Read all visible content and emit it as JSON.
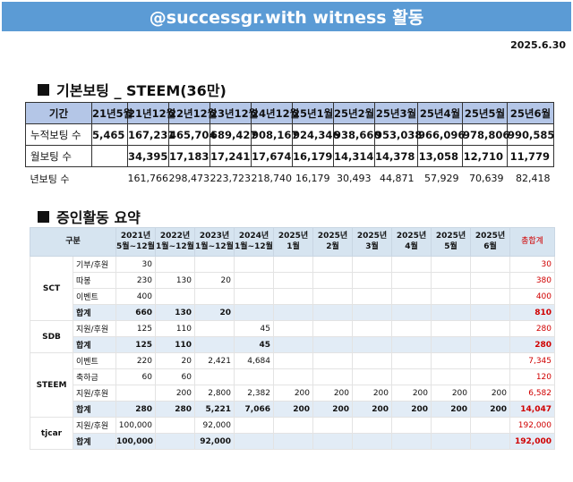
{
  "banner": "@successgr.with witness 활동",
  "date": "2025.6.30",
  "voting": {
    "title": "기본보팅 _ STEEM(36만)",
    "header": [
      "기간",
      "21년5월",
      "21년12월",
      "22년12월",
      "23년12월",
      "24년12월",
      "25년1월",
      "25년2월",
      "25년3월",
      "25년4월",
      "25년5월",
      "25년6월"
    ],
    "rows": [
      {
        "label": "누적보팅 수",
        "values": [
          "5,465",
          "167,231",
          "465,704",
          "689,427",
          "908,167",
          "924,346",
          "938,660",
          "953,038",
          "966,096",
          "978,806",
          "990,585"
        ]
      },
      {
        "label": "월보팅 수",
        "values": [
          "",
          "34,395",
          "17,183",
          "17,241",
          "17,674",
          "16,179",
          "14,314",
          "14,378",
          "13,058",
          "12,710",
          "11,779"
        ]
      },
      {
        "label": "년보팅 수",
        "values": [
          "",
          "161,766",
          "298,473",
          "223,723",
          "218,740",
          "16,179",
          "30,493",
          "44,871",
          "57,929",
          "70,639",
          "82,418"
        ]
      }
    ]
  },
  "donation": {
    "title": "증인활동 요약",
    "header": {
      "group": "구분",
      "cols": [
        [
          "2021년",
          "5월~12월"
        ],
        [
          "2022년",
          "1월~12월"
        ],
        [
          "2023년",
          "1월~12월"
        ],
        [
          "2024년",
          "1월~12월"
        ],
        [
          "2025년",
          "1월"
        ],
        [
          "2025년",
          "2월"
        ],
        [
          "2025년",
          "3월"
        ],
        [
          "2025년",
          "4월"
        ],
        [
          "2025년",
          "5월"
        ],
        [
          "2025년",
          "6월"
        ]
      ],
      "total": "총합계"
    },
    "groups": [
      {
        "name": "SCT",
        "rows": [
          {
            "label": "기부/후원",
            "values": [
              "30",
              "",
              "",
              "",
              "",
              "",
              "",
              "",
              "",
              ""
            ],
            "total": "30"
          },
          {
            "label": "따봉",
            "values": [
              "230",
              "130",
              "20",
              "",
              "",
              "",
              "",
              "",
              "",
              ""
            ],
            "total": "380"
          },
          {
            "label": "이벤트",
            "values": [
              "400",
              "",
              "",
              "",
              "",
              "",
              "",
              "",
              "",
              ""
            ],
            "total": "400"
          },
          {
            "label": "합계",
            "sum": true,
            "values": [
              "660",
              "130",
              "20",
              "",
              "",
              "",
              "",
              "",
              "",
              ""
            ],
            "total": "810"
          }
        ]
      },
      {
        "name": "SDB",
        "rows": [
          {
            "label": "지원/후원",
            "values": [
              "125",
              "110",
              "",
              "45",
              "",
              "",
              "",
              "",
              "",
              ""
            ],
            "total": "280"
          },
          {
            "label": "합계",
            "sum": true,
            "values": [
              "125",
              "110",
              "",
              "45",
              "",
              "",
              "",
              "",
              "",
              ""
            ],
            "total": "280"
          }
        ]
      },
      {
        "name": "STEEM",
        "rows": [
          {
            "label": "이벤트",
            "values": [
              "220",
              "20",
              "2,421",
              "4,684",
              "",
              "",
              "",
              "",
              "",
              ""
            ],
            "total": "7,345"
          },
          {
            "label": "축하금",
            "values": [
              "60",
              "60",
              "",
              "",
              "",
              "",
              "",
              "",
              "",
              ""
            ],
            "total": "120"
          },
          {
            "label": "지원/후원",
            "values": [
              "",
              "200",
              "2,800",
              "2,382",
              "200",
              "200",
              "200",
              "200",
              "200",
              "200"
            ],
            "total": "6,582"
          },
          {
            "label": "합계",
            "sum": true,
            "values": [
              "280",
              "280",
              "5,221",
              "7,066",
              "200",
              "200",
              "200",
              "200",
              "200",
              "200"
            ],
            "total": "14,047"
          }
        ]
      },
      {
        "name": "tjcar",
        "rows": [
          {
            "label": "지원/후원",
            "values": [
              "100,000",
              "",
              "92,000",
              "",
              "",
              "",
              "",
              "",
              "",
              ""
            ],
            "total": "192,000"
          },
          {
            "label": "합계",
            "sum": true,
            "values": [
              "100,000",
              "",
              "92,000",
              "",
              "",
              "",
              "",
              "",
              "",
              ""
            ],
            "total": "192,000"
          }
        ]
      }
    ]
  }
}
